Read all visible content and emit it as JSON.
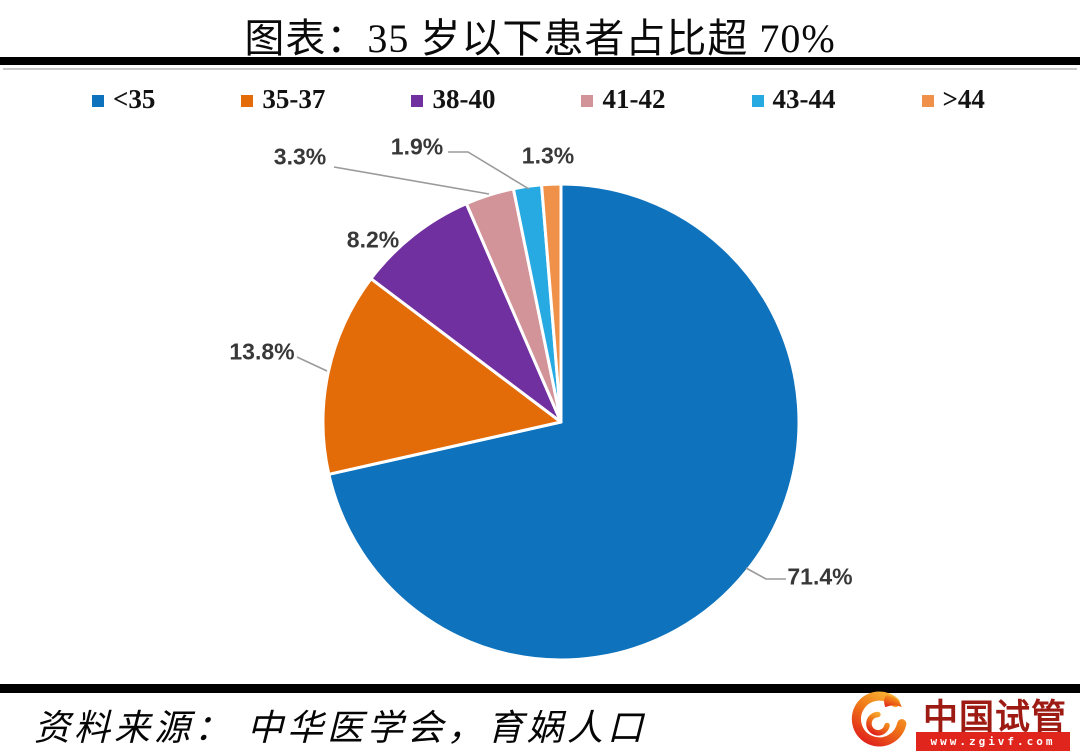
{
  "title": "图表：35 岁以下患者占比超 70%",
  "chart_data": {
    "type": "pie",
    "title": "图表：35 岁以下患者占比超 70%",
    "categories": [
      "<35",
      "35-37",
      "38-40",
      "41-42",
      "43-44",
      ">44"
    ],
    "values": [
      71.4,
      13.8,
      8.2,
      3.3,
      1.9,
      1.3
    ],
    "labels": [
      "71.4%",
      "13.8%",
      "8.2%",
      "3.3%",
      "1.9%",
      "1.3%"
    ],
    "colors": [
      "#0e72bc",
      "#e36c09",
      "#7030a0",
      "#d29499",
      "#27aae1",
      "#f0914a"
    ],
    "legend_position": "top",
    "start_angle_deg": 0,
    "direction": "clockwise",
    "label_color": "#383838",
    "leader_line_color": "#9a9a9a"
  },
  "footer": {
    "source_text": "资料来源： 中华医学会，育娲人口",
    "logo": {
      "icon": "phoenix-icon",
      "brand": "中国试管",
      "url_label": "www.zgivf.com",
      "brand_color": "#9e1b14",
      "bar_color": "#e0251c"
    }
  }
}
